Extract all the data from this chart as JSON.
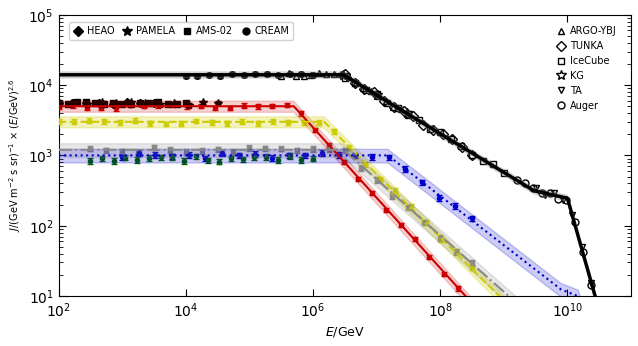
{
  "title": "",
  "xlabel": "E/GeV",
  "ylabel": "J/(GeV m\\u207b\\u00b2 s sr)\\u207b\\u00b9 \\u00d7 (E/GeV)\\u00b2\\u22c56",
  "xlim": [
    100.0,
    100000000000.0
  ],
  "ylim": [
    10,
    100000.0
  ],
  "legend_left": [
    "HEAO",
    "PAMELA",
    "AMS-02",
    "CREAM"
  ],
  "legend_right": [
    "ARGO-YBJ",
    "TUNKA",
    "IceCube",
    "KG",
    "TA",
    "Auger"
  ],
  "colors": {
    "all_particle": "#000000",
    "proton": "#cc0000",
    "helium": "#cccc00",
    "oxygen": "#888888",
    "iron": "#0000cc"
  },
  "bg_color": "#ffffff"
}
